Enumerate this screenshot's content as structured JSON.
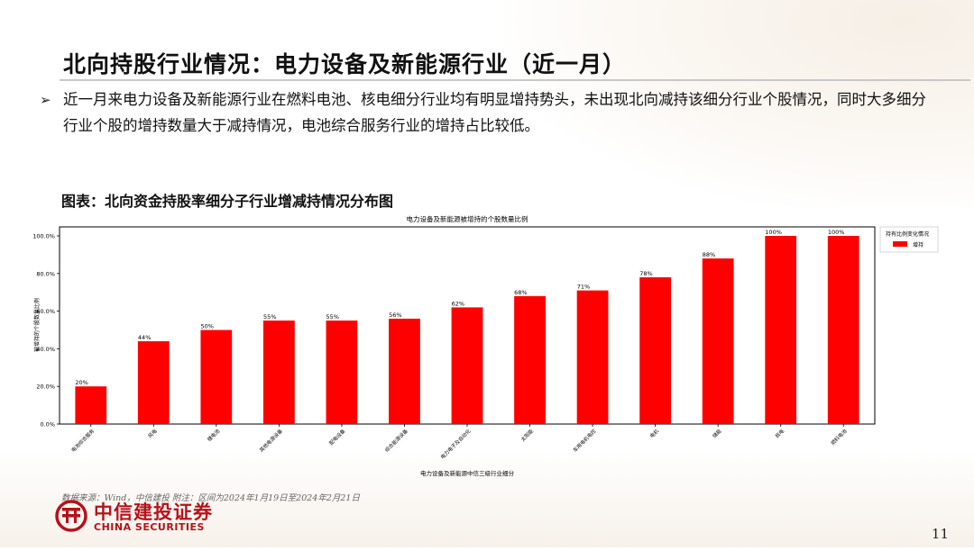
{
  "header": {
    "title": "北向持股行业情况：电力设备及新能源行业（近一月）",
    "bullet": "近一月来电力设备及新能源行业在燃料电池、核电细分行业均有明显增持势头，未出现北向减持该细分行业个股情况，同时大多细分行业个股的增持数量大于减持情况，电池综合服务行业的增持占比较低。"
  },
  "figure": {
    "caption": "图表：北向资金持股率细分子行业增减持情况分布图",
    "source": "数据来源：Wind，中信建投 附注：区间为2024年1月19日至2024年2月21日"
  },
  "chart_data": {
    "type": "bar",
    "title": "电力设备及新能源被增持的个股数量比例",
    "xlabel": "电力设备及新能源中信三级行业细分",
    "ylabel": "被增持的个股数量比例",
    "categories": [
      "电池综合服务",
      "风电",
      "锂电池",
      "其他电源设备",
      "配电设备",
      "综合能源设备",
      "电力电子及自动化",
      "太阳能",
      "车用电机电控",
      "电机",
      "储能",
      "核电",
      "燃料电池"
    ],
    "series": [
      {
        "name": "增持",
        "values": [
          20,
          44,
          50,
          55,
          55,
          56,
          62,
          68,
          71,
          78,
          88,
          100,
          100
        ],
        "color": "#ff0000"
      }
    ],
    "data_labels": [
      "20%",
      "44%",
      "50%",
      "55%",
      "55%",
      "56%",
      "62%",
      "68%",
      "71%",
      "78%",
      "88%",
      "100%",
      "100%"
    ],
    "yticks": [
      "0.0%",
      "20.0%",
      "40.0%",
      "60.0%",
      "80.0%",
      "100.0%"
    ],
    "ylim": [
      0,
      100
    ],
    "legend_title": "持有比例变化情况",
    "legend_position": "outside-right",
    "grid": false
  },
  "footer": {
    "logo_cn": "中信建投证券",
    "logo_en": "CHINA SECURITIES",
    "page_number": "11"
  }
}
